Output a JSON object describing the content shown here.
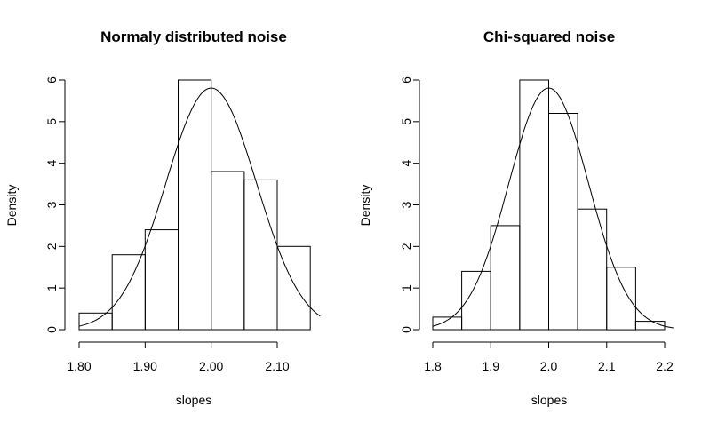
{
  "chart_data": [
    {
      "type": "bar",
      "title": "Normaly distributed noise",
      "xlabel": "slopes",
      "ylabel": "Density",
      "bins": [
        {
          "from": 1.8,
          "to": 1.85,
          "density": 0.4
        },
        {
          "from": 1.85,
          "to": 1.9,
          "density": 1.8
        },
        {
          "from": 1.9,
          "to": 1.95,
          "density": 2.4
        },
        {
          "from": 1.95,
          "to": 2.0,
          "density": 6.0
        },
        {
          "from": 2.0,
          "to": 2.05,
          "density": 3.8
        },
        {
          "from": 2.05,
          "to": 2.1,
          "density": 3.6
        },
        {
          "from": 2.1,
          "to": 2.15,
          "density": 2.0
        }
      ],
      "curve": {
        "kind": "normal",
        "mean": 2.0,
        "sd": 0.0687,
        "x_range": [
          1.8,
          2.165
        ]
      },
      "x_ticks": [
        1.8,
        1.9,
        2.0,
        2.1
      ],
      "x_tick_labels": [
        "1.80",
        "1.90",
        "2.00",
        "2.10"
      ],
      "y_ticks": [
        0,
        1,
        2,
        3,
        4,
        5,
        6
      ],
      "y_tick_labels": [
        "0",
        "1",
        "2",
        "3",
        "4",
        "5",
        "6"
      ],
      "xlim": [
        1.786,
        2.164
      ],
      "ylim": [
        0,
        6.3
      ],
      "grid": false,
      "legend": "none"
    },
    {
      "type": "bar",
      "title": "Chi-squared noise",
      "xlabel": "slopes",
      "ylabel": "Density",
      "bins": [
        {
          "from": 1.8,
          "to": 1.85,
          "density": 0.3
        },
        {
          "from": 1.85,
          "to": 1.9,
          "density": 1.4
        },
        {
          "from": 1.9,
          "to": 1.95,
          "density": 2.5
        },
        {
          "from": 1.95,
          "to": 2.0,
          "density": 6.0
        },
        {
          "from": 2.0,
          "to": 2.05,
          "density": 5.2
        },
        {
          "from": 2.05,
          "to": 2.1,
          "density": 2.9
        },
        {
          "from": 2.1,
          "to": 2.15,
          "density": 1.5
        },
        {
          "from": 2.15,
          "to": 2.2,
          "density": 0.2
        }
      ],
      "curve": {
        "kind": "normal",
        "mean": 2.0,
        "sd": 0.0687,
        "x_range": [
          1.8,
          2.215
        ]
      },
      "x_ticks": [
        1.8,
        1.9,
        2.0,
        2.1,
        2.2
      ],
      "x_tick_labels": [
        "1.8",
        "1.9",
        "2.0",
        "2.1",
        "2.2"
      ],
      "y_ticks": [
        0,
        1,
        2,
        3,
        4,
        5,
        6
      ],
      "y_tick_labels": [
        "0",
        "1",
        "2",
        "3",
        "4",
        "5",
        "6"
      ],
      "xlim": [
        1.786,
        2.214
      ],
      "ylim": [
        0,
        6.3
      ],
      "grid": false,
      "legend": "none"
    }
  ]
}
